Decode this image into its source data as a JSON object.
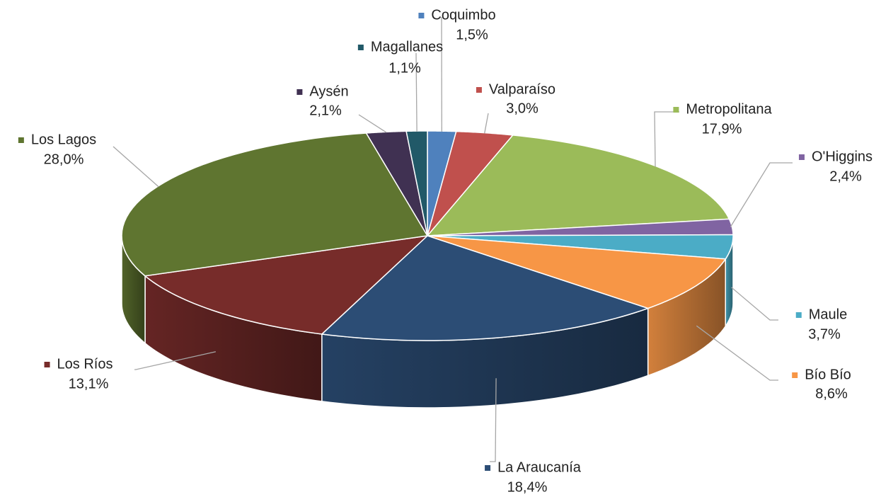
{
  "chart_data": {
    "type": "pie3d",
    "categories": [
      "Coquimbo",
      "Valparaíso",
      "Metropolitana",
      "O'Higgins",
      "Maule",
      "Bío Bío",
      "La Araucanía",
      "Los Ríos",
      "Los Lagos",
      "Aysén",
      "Magallanes"
    ],
    "values": [
      1.5,
      3.0,
      17.9,
      2.4,
      3.7,
      8.6,
      18.4,
      13.1,
      28.0,
      2.1,
      1.1
    ],
    "value_labels": [
      "1,5%",
      "3,0%",
      "17,9%",
      "2,4%",
      "3,7%",
      "8,6%",
      "18,4%",
      "13,1%",
      "28,0%",
      "2,1%",
      "1,1%"
    ],
    "colors": [
      "#4f81bd",
      "#c0504d",
      "#9bbb59",
      "#8064a2",
      "#4bacc6",
      "#f79646",
      "#2c4d75",
      "#772c2a",
      "#5f7530",
      "#403152",
      "#215968"
    ]
  }
}
